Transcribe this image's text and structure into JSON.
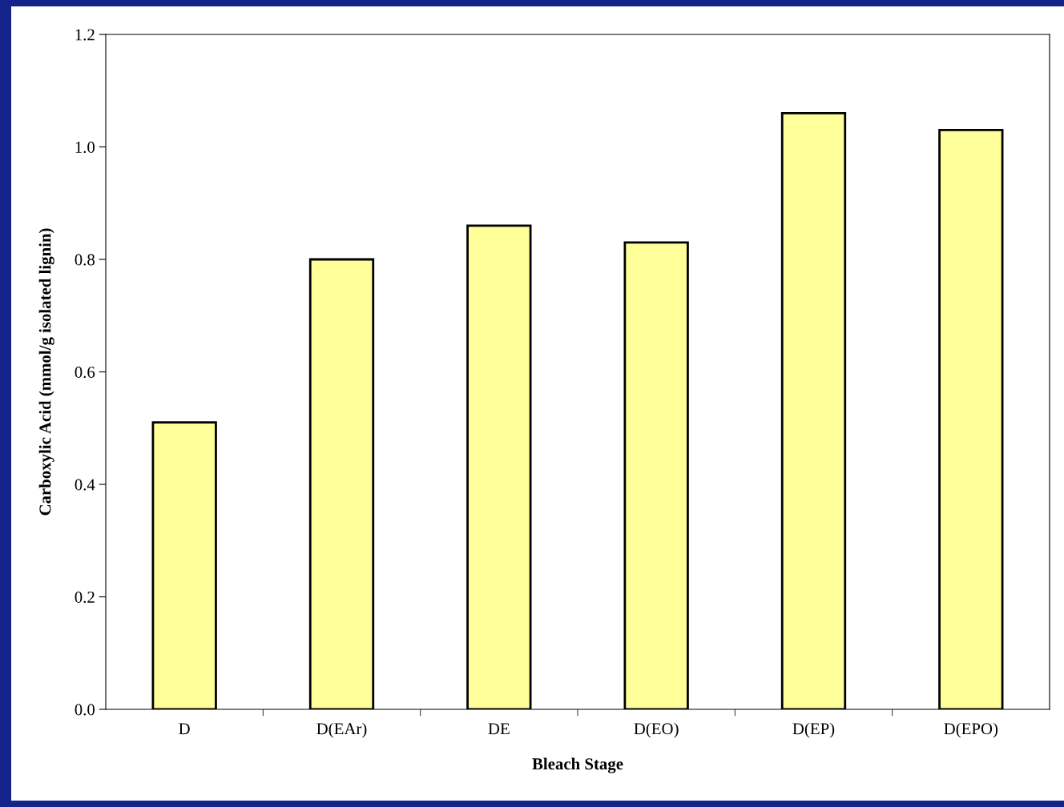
{
  "chart_data": {
    "type": "bar",
    "xlabel": "Bleach Stage",
    "ylabel": "Carboxylic Acid (mmol/g isolated lignin)",
    "categories": [
      "D",
      "D(EAr)",
      "DE",
      "D(EO)",
      "D(EP)",
      "D(EPO)"
    ],
    "values": [
      0.51,
      0.8,
      0.86,
      0.83,
      1.06,
      1.03
    ],
    "color": "#ffff99",
    "ylim": [
      0,
      1.2
    ],
    "yticks": [
      {
        "value": 0,
        "label": "0.0"
      },
      {
        "value": 0.2,
        "label": "0.2"
      },
      {
        "value": 0.4,
        "label": "0.4"
      },
      {
        "value": 0.6,
        "label": "0.6"
      },
      {
        "value": 0.8,
        "label": "0.8"
      },
      {
        "value": 1.0,
        "label": "1.0"
      },
      {
        "value": 1.2,
        "label": "1.2"
      }
    ],
    "grid": false,
    "legend": false
  }
}
